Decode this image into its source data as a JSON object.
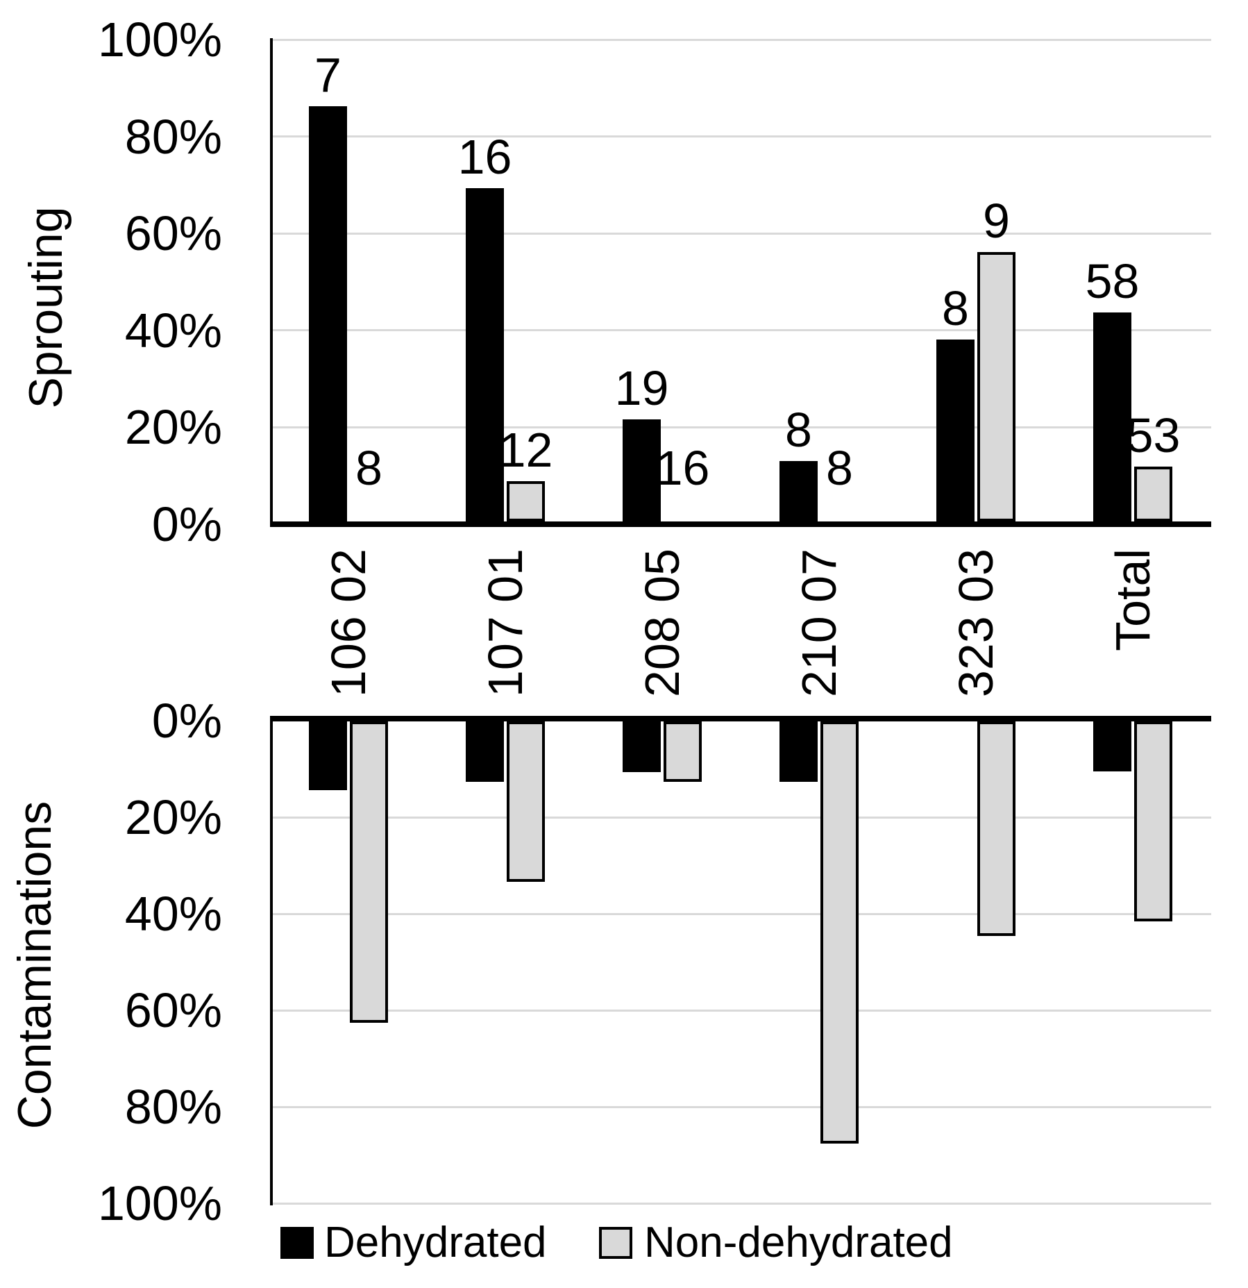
{
  "figure": {
    "background": "#ffffff",
    "colors": {
      "dehydrated": "#000000",
      "non_dehydrated_fill": "#d9d9d9",
      "non_dehydrated_border": "#000000",
      "gridline": "#d9d9d9",
      "axis": "#000000",
      "text": "#000000"
    }
  },
  "categories": [
    "106 02",
    "107 01",
    "208 05",
    "210 07",
    "323 03",
    "Total"
  ],
  "chart_data": [
    {
      "type": "bar",
      "title": "Sprouting",
      "ylabel": "Sprouting",
      "xlabel": "",
      "direction": "up",
      "grid": true,
      "ylim": [
        0,
        100
      ],
      "yticks": [
        "100%",
        "80%",
        "60%",
        "40%",
        "20%",
        "0%"
      ],
      "categories": [
        "106 02",
        "107 01",
        "208 05",
        "210 07",
        "323 03",
        "Total"
      ],
      "series": [
        {
          "name": "Dehydrated",
          "color": "#000000",
          "values": [
            85.7,
            68.8,
            21.1,
            12.5,
            37.5,
            43.1
          ],
          "bar_labels": [
            "7",
            "16",
            "19",
            "8",
            "8",
            "58"
          ]
        },
        {
          "name": "Non-dehydrated",
          "color": "#d9d9d9",
          "values": [
            0,
            8.3,
            0,
            0,
            55.6,
            11.3
          ],
          "bar_labels": [
            "8",
            "12",
            "16",
            "8",
            "9",
            "53"
          ]
        }
      ]
    },
    {
      "type": "bar",
      "title": "Contaminations",
      "ylabel": "Contaminations",
      "xlabel": "",
      "direction": "down",
      "grid": true,
      "ylim": [
        0,
        100
      ],
      "yticks": [
        "0%",
        "20%",
        "40%",
        "60%",
        "80%",
        "100%"
      ],
      "categories": [
        "106 02",
        "107 01",
        "208 05",
        "210 07",
        "323 03",
        "Total"
      ],
      "series": [
        {
          "name": "Dehydrated",
          "color": "#000000",
          "values": [
            14.3,
            12.5,
            10.5,
            12.5,
            0,
            10.3
          ],
          "bar_labels": []
        },
        {
          "name": "Non-dehydrated",
          "color": "#d9d9d9",
          "values": [
            62.5,
            33.3,
            12.5,
            87.5,
            44.4,
            41.5
          ],
          "bar_labels": []
        }
      ]
    }
  ],
  "legend": {
    "position": "bottom",
    "items": [
      {
        "label": "Dehydrated",
        "color": "#000000",
        "swatch": "black-filled-square"
      },
      {
        "label": "Non-dehydrated",
        "color": "#d9d9d9",
        "swatch": "gray-square-black-border"
      }
    ]
  }
}
